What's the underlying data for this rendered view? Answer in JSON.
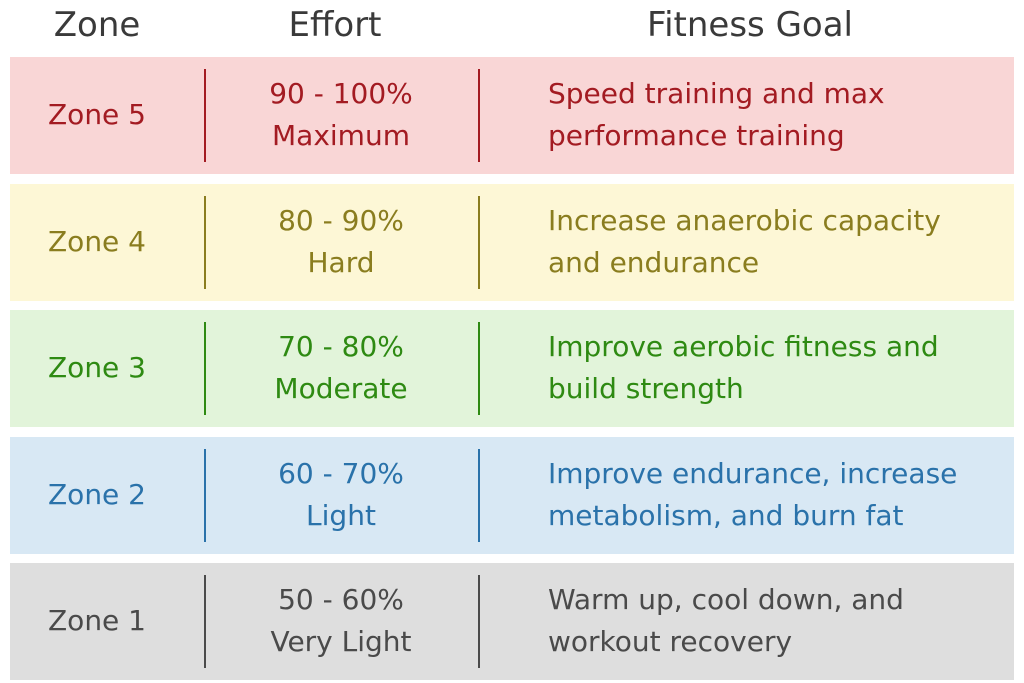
{
  "header": {
    "zone": "Zone",
    "effort": "Effort",
    "goal": "Fitness Goal"
  },
  "rows": [
    {
      "zone": "Zone 5",
      "range": "90 - 100%",
      "level": "Maximum",
      "goal": [
        "Speed training and max",
        "performance training"
      ]
    },
    {
      "zone": "Zone 4",
      "range": "80 - 90%",
      "level": "Hard",
      "goal": [
        "Increase anaerobic capacity",
        "and endurance"
      ]
    },
    {
      "zone": "Zone 3",
      "range": "70 - 80%",
      "level": "Moderate",
      "goal": [
        "Improve aerobic fitness and",
        "build strength"
      ]
    },
    {
      "zone": "Zone 2",
      "range": "60 - 70%",
      "level": "Light",
      "goal": [
        "Improve endurance, increase",
        "metabolism, and burn fat"
      ]
    },
    {
      "zone": "Zone 1",
      "range": "50 - 60%",
      "level": "Very Light",
      "goal": [
        "Warm up, cool down, and",
        "workout recovery"
      ]
    }
  ]
}
